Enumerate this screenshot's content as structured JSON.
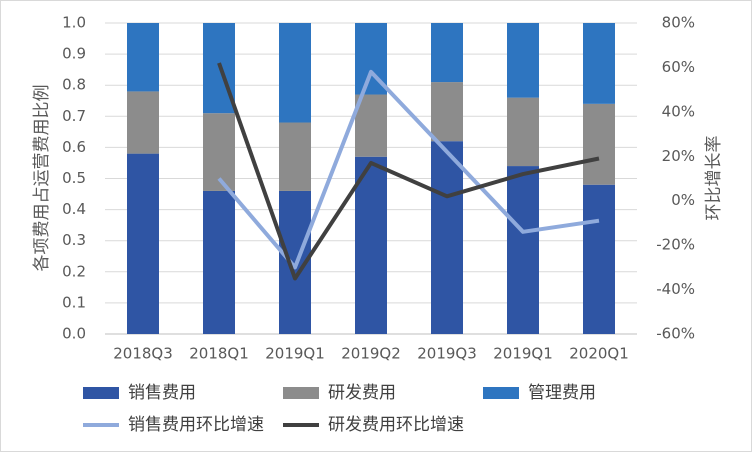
{
  "chart_data": {
    "type": "bar",
    "stacked": true,
    "categories": [
      "2018Q3",
      "2018Q1",
      "2019Q1",
      "2019Q2",
      "2019Q3",
      "2019Q1",
      "2020Q1"
    ],
    "ylabel": "各项费用占运营费用比例",
    "y2label": "环比增长率",
    "ylim": [
      0,
      1.0
    ],
    "yticks": [
      {
        "value": 0,
        "label": "0.0"
      },
      0.1,
      0.2,
      0.3,
      0.4,
      0.5,
      0.6,
      0.7,
      0.8,
      0.9,
      {
        "value": 1,
        "label": "1.0"
      }
    ],
    "y2lim": [
      -60,
      80
    ],
    "y2ticks": [
      {
        "value": -60,
        "label": "-60%"
      },
      {
        "value": -40,
        "label": "-40%"
      },
      {
        "value": -20,
        "label": "-20%"
      },
      {
        "value": 0,
        "label": "0%"
      },
      {
        "value": 20,
        "label": "20%"
      },
      {
        "value": 40,
        "label": "40%"
      },
      {
        "value": 60,
        "label": "60%"
      },
      {
        "value": 80,
        "label": "80%"
      }
    ],
    "grid": true,
    "series": [
      {
        "name": "销售费用",
        "type": "bar",
        "color": "#2f55a4",
        "values": [
          0.58,
          0.46,
          0.46,
          0.57,
          0.62,
          0.54,
          0.48
        ]
      },
      {
        "name": "研发费用",
        "type": "bar",
        "color": "#8c8c8c",
        "values": [
          0.2,
          0.25,
          0.22,
          0.2,
          0.19,
          0.22,
          0.26
        ]
      },
      {
        "name": "管理费用",
        "type": "bar",
        "color": "#2e75c0",
        "values": [
          0.22,
          0.29,
          0.32,
          0.23,
          0.19,
          0.24,
          0.26
        ]
      },
      {
        "name": "销售费用环比增速",
        "type": "line",
        "axis": "y2",
        "color": "#8faadc",
        "values": [
          null,
          10,
          -30,
          58,
          22,
          -14,
          -9
        ]
      },
      {
        "name": "研发费用环比增速",
        "type": "line",
        "axis": "y2",
        "color": "#404040",
        "values": [
          null,
          62,
          -35,
          17,
          2,
          12,
          19
        ]
      }
    ]
  }
}
